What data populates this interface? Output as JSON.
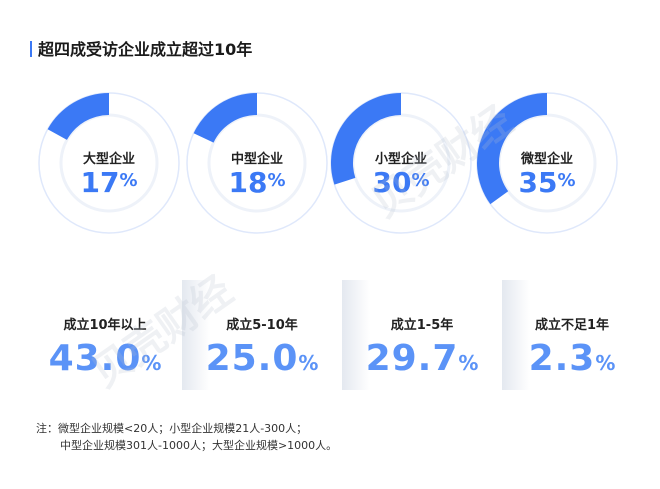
{
  "title": "超四成受访企业成立超过10年",
  "chart_data": [
    {
      "type": "pie",
      "categories": [
        "大型企业",
        "中型企业",
        "小型企业",
        "微型企业"
      ],
      "values": [
        17,
        18,
        30,
        35
      ],
      "unit": "%"
    },
    {
      "type": "bar",
      "categories": [
        "成立10年以上",
        "成立5-10年",
        "成立1-5年",
        "成立不足1年"
      ],
      "values": [
        43.0,
        25.0,
        29.7,
        2.3
      ],
      "unit": "%"
    }
  ],
  "donuts": [
    {
      "label": "大型企业",
      "value": "17",
      "unit": "%"
    },
    {
      "label": "中型企业",
      "value": "18",
      "unit": "%"
    },
    {
      "label": "小型企业",
      "value": "30",
      "unit": "%"
    },
    {
      "label": "微型企业",
      "value": "35",
      "unit": "%"
    }
  ],
  "establishment": [
    {
      "label": "成立10年以上",
      "value": "43.0",
      "unit": "%"
    },
    {
      "label": "成立5-10年",
      "value": "25.0",
      "unit": "%"
    },
    {
      "label": "成立1-5年",
      "value": "29.7",
      "unit": "%"
    },
    {
      "label": "成立不足1年",
      "value": "2.3",
      "unit": "%"
    }
  ],
  "note": {
    "line1": "注：微型企业规模<20人；小型企业规模21人-300人；",
    "line2": "中型企业规模301人-1000人；大型企业规模>1000人。"
  },
  "watermark": "贝壳财经",
  "colors": {
    "accent": "#3b79f5",
    "track": "#dfe8fb",
    "value_light": "#5b93f7"
  }
}
